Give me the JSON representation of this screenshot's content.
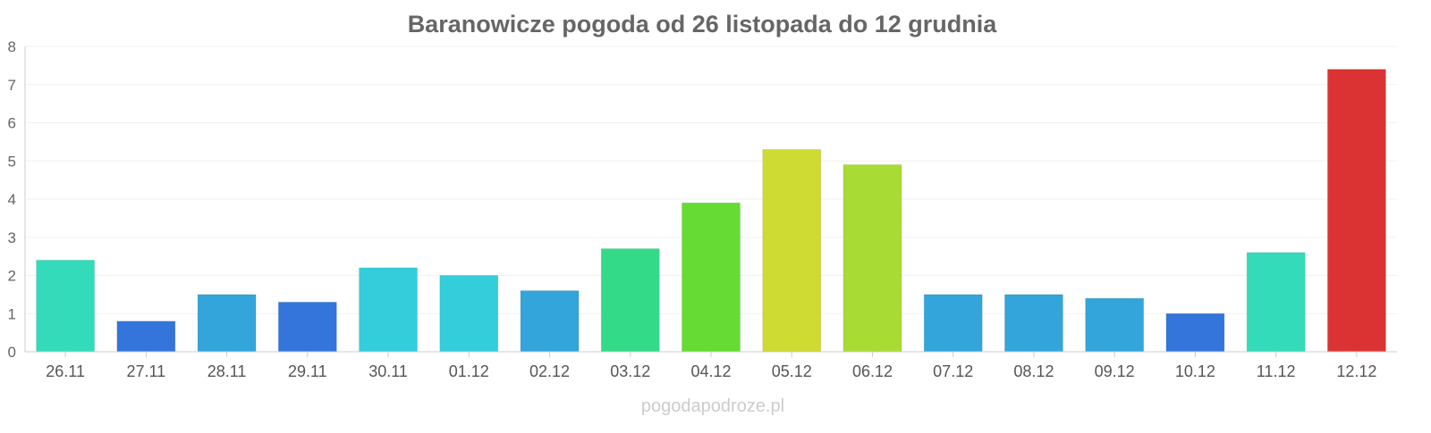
{
  "chart_data": {
    "type": "bar",
    "title": "Baranowicze pogoda od 26 listopada do 12 grudnia",
    "xlabel": "",
    "ylabel": "",
    "ylim": [
      0,
      8
    ],
    "yticks": [
      0,
      1,
      2,
      3,
      4,
      5,
      6,
      7,
      8
    ],
    "grid": true,
    "categories": [
      "26.11",
      "27.11",
      "28.11",
      "29.11",
      "30.11",
      "01.12",
      "02.12",
      "03.12",
      "04.12",
      "05.12",
      "06.12",
      "07.12",
      "08.12",
      "09.12",
      "10.12",
      "11.12",
      "12.12"
    ],
    "values": [
      2.4,
      0.8,
      1.5,
      1.3,
      2.2,
      2.0,
      1.6,
      2.7,
      3.9,
      5.3,
      4.9,
      1.5,
      1.5,
      1.4,
      1.0,
      2.6,
      7.4
    ],
    "colors": [
      "#33dbbb",
      "#3375db",
      "#33a5db",
      "#3375db",
      "#33cddb",
      "#33cddb",
      "#33a5db",
      "#33db88",
      "#66db33",
      "#cddb33",
      "#a8db33",
      "#33a5db",
      "#33a5db",
      "#33a5db",
      "#3375db",
      "#33dbbb",
      "#db3333"
    ]
  },
  "watermark": "pogodapodroze.pl"
}
